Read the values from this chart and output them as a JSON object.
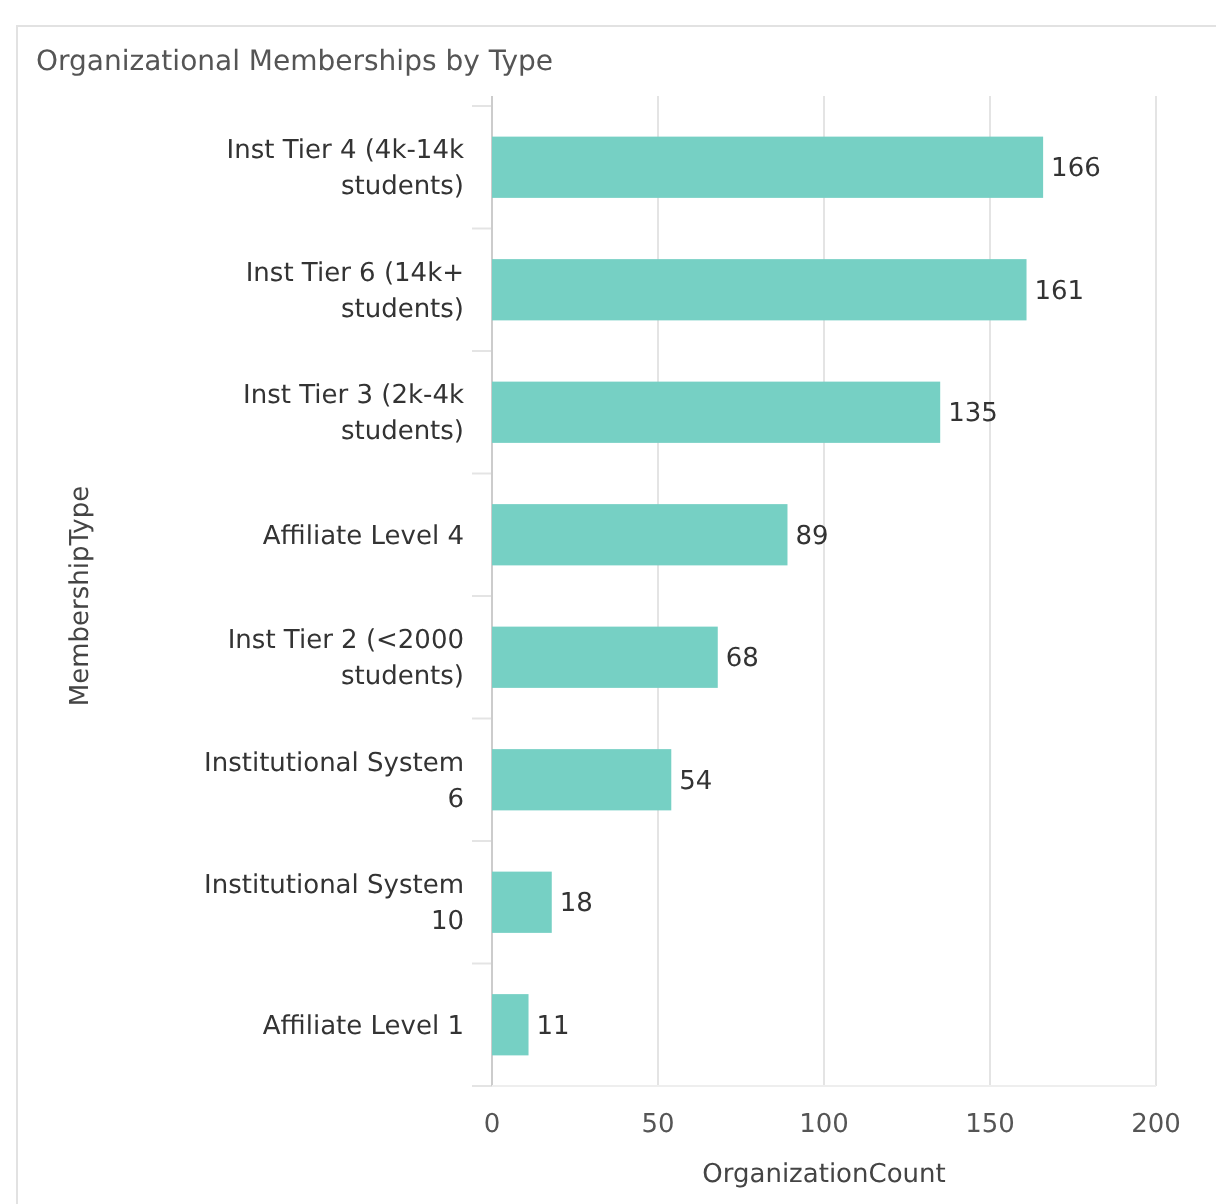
{
  "chart_data": {
    "type": "bar",
    "orientation": "horizontal",
    "title": "Organizational Memberships by Type",
    "xlabel": "OrganizationCount",
    "ylabel": "MembershipType",
    "categories": [
      "Inst Tier 4 (4k-14k students)",
      "Inst Tier 6 (14k+ students)",
      "Inst Tier 3 (2k-4k students)",
      "Affiliate Level 4",
      "Inst Tier 2 (<2000 students)",
      "Institutional System 6",
      "Institutional System 10",
      "Affiliate Level 1"
    ],
    "values": [
      166,
      161,
      135,
      89,
      68,
      54,
      18,
      11
    ],
    "color": "#76d0c4",
    "xlim": [
      0,
      200
    ],
    "xticks": [
      0,
      50,
      100,
      150,
      200
    ],
    "grid": "x",
    "data_labels": true
  }
}
